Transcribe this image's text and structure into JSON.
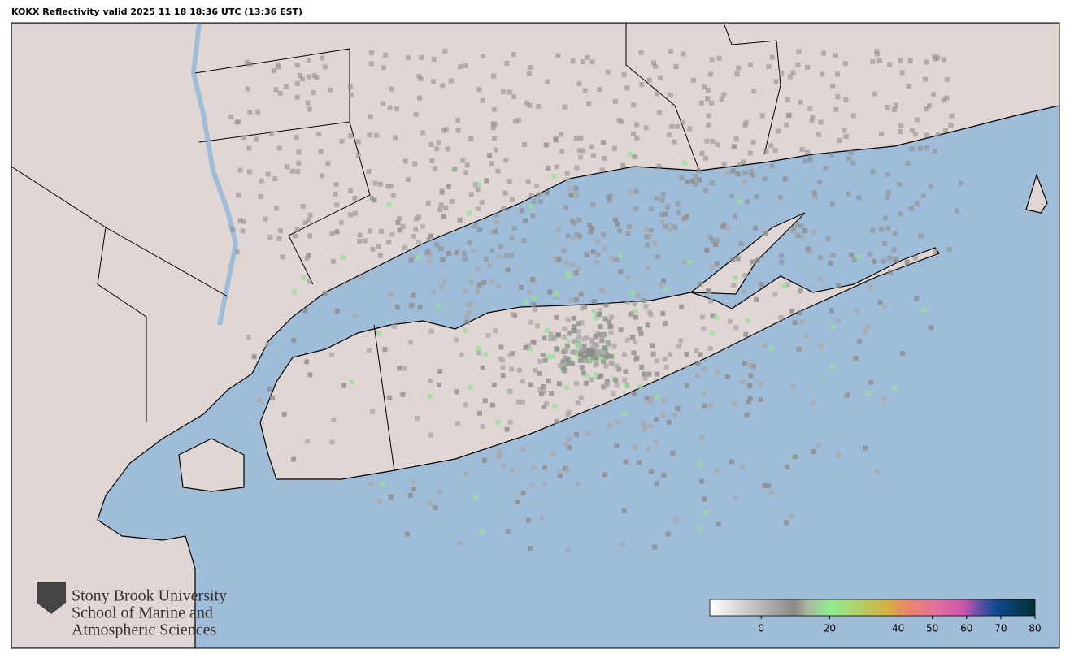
{
  "title": "KOKX Reflectivity valid 2025 11 18 18:36 UTC (13:36 EST)",
  "logo": {
    "lines": [
      "Stony Brook University",
      "School of Marine and",
      "Atmospheric Sciences"
    ]
  },
  "colorbar": {
    "range": [
      -15,
      80
    ],
    "ticks": [
      0,
      20,
      40,
      50,
      60,
      70,
      80
    ]
  },
  "colors": {
    "water": "#9fbcd8",
    "land": "#e0d6d4"
  }
}
